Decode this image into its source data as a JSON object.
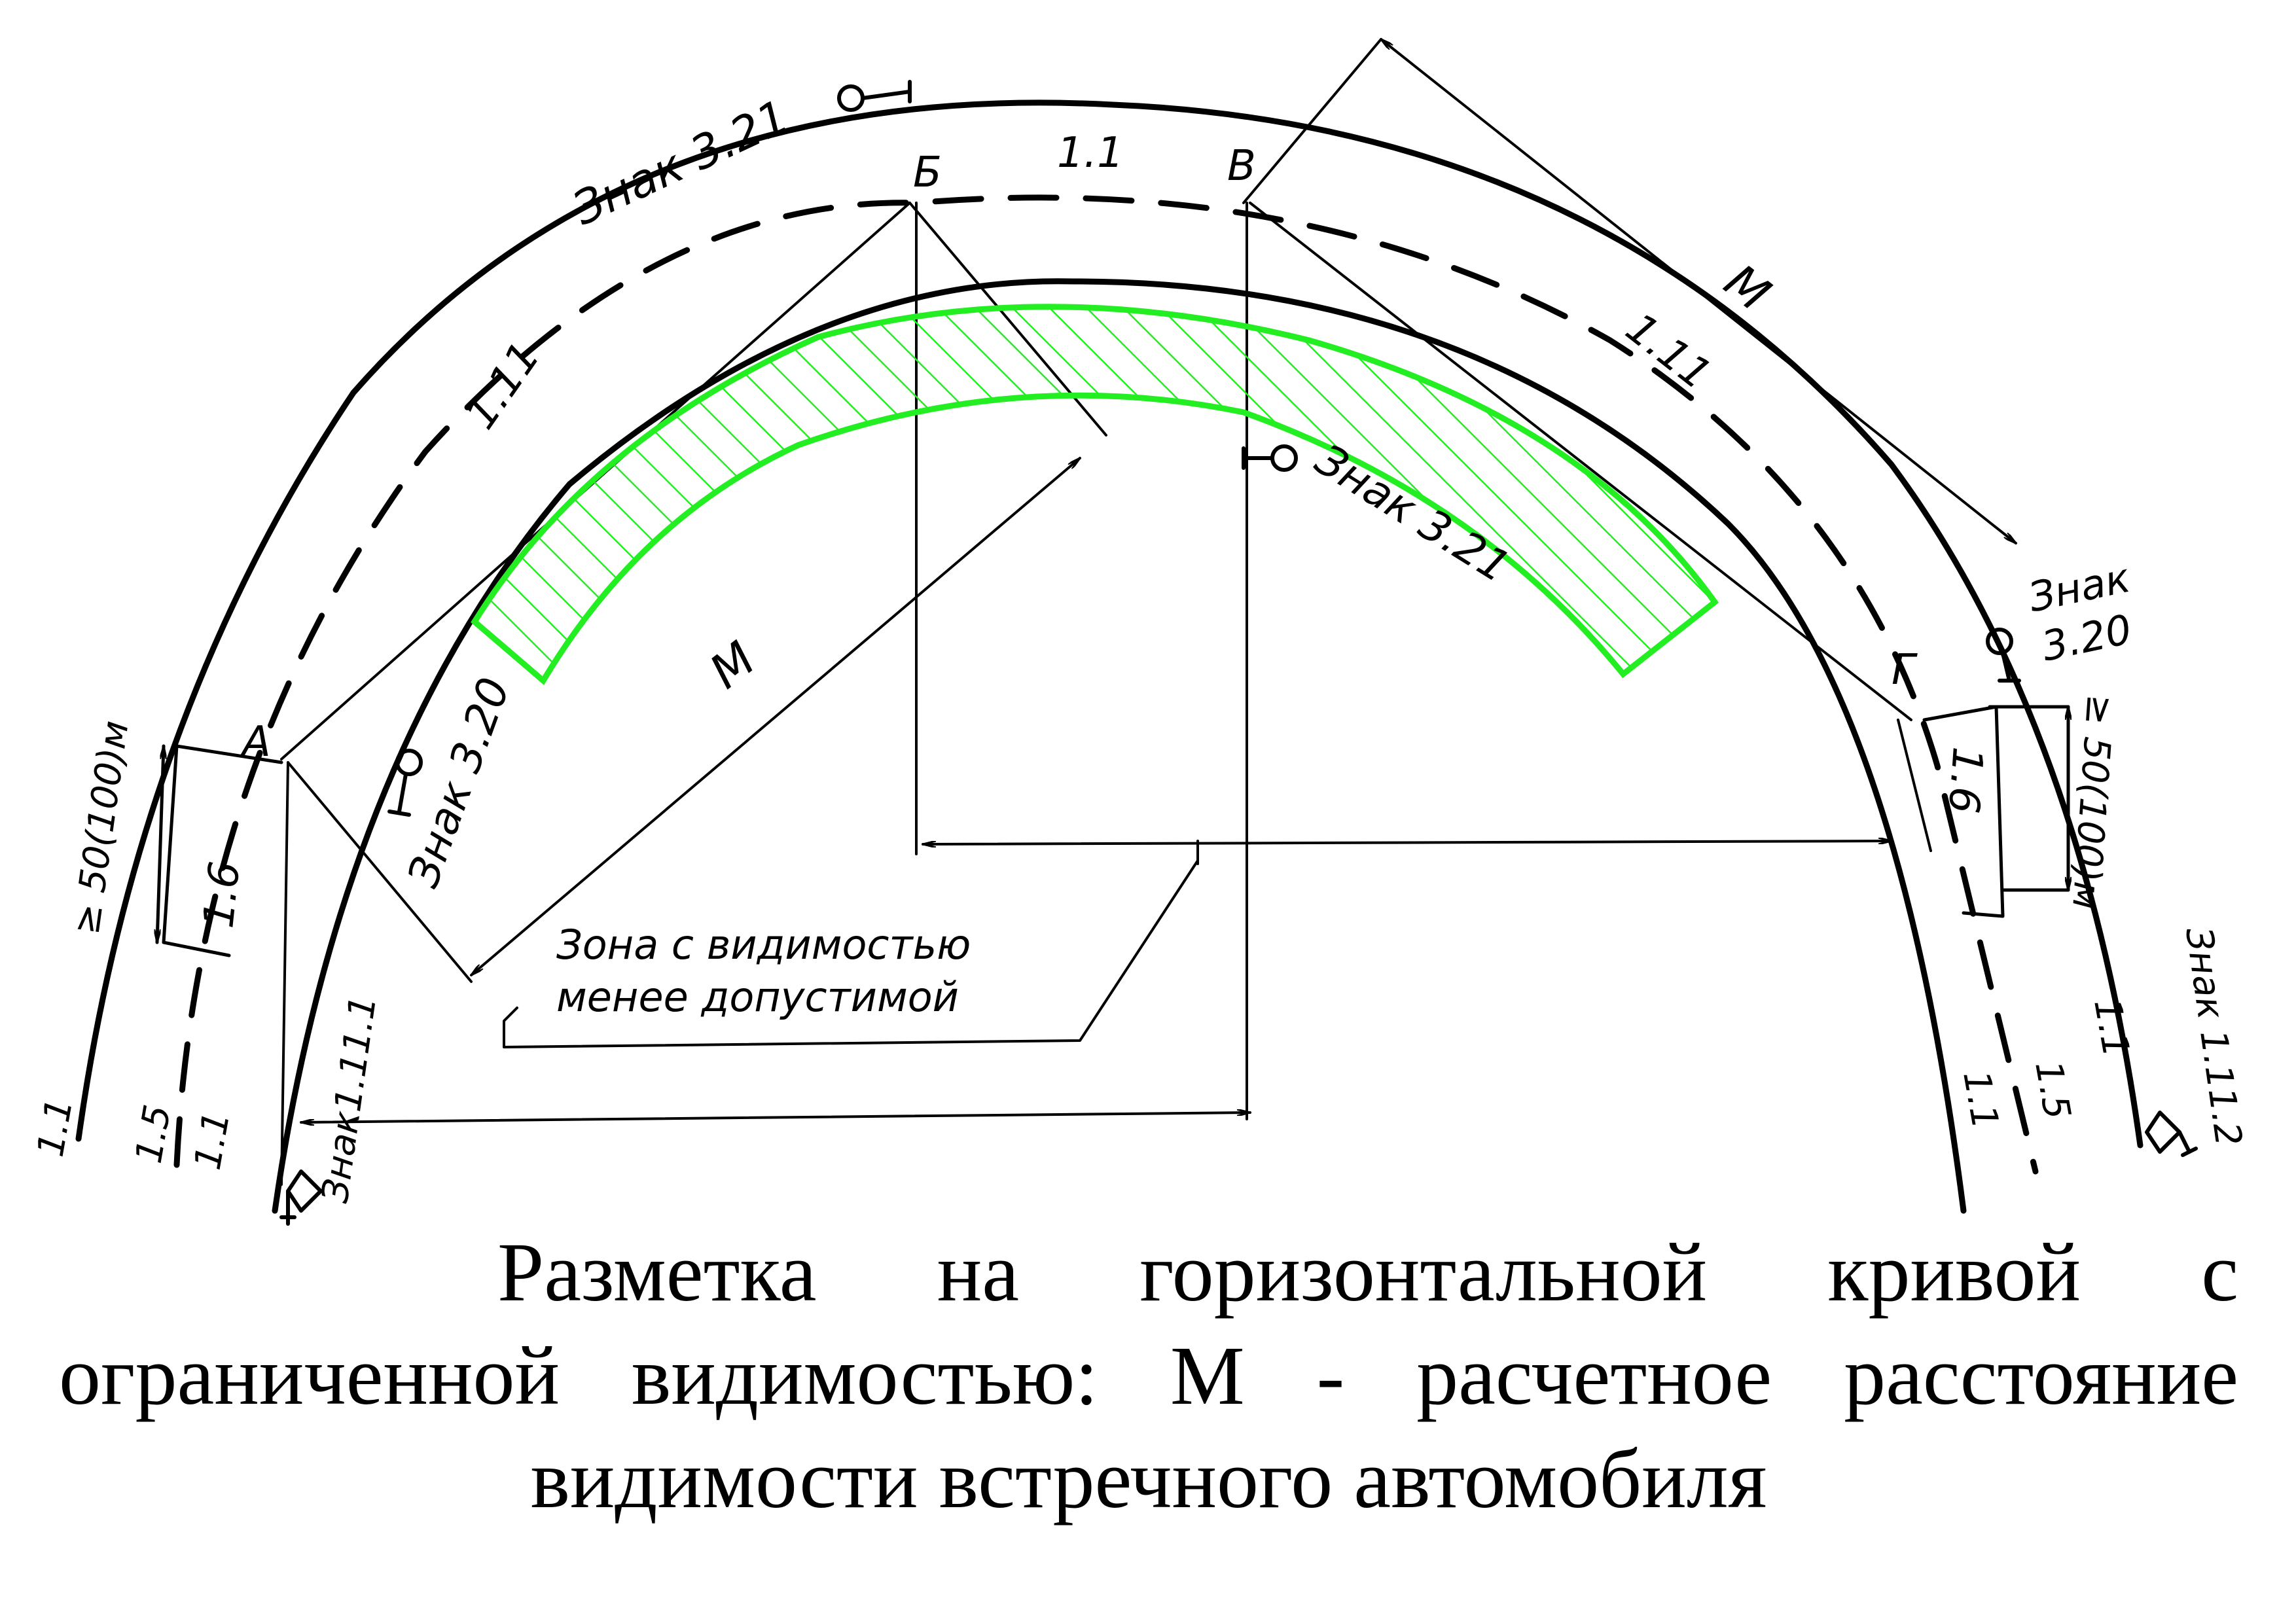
{
  "diagram": {
    "points": {
      "A": "А",
      "B": "Б",
      "V": "В",
      "G": "Г"
    },
    "markings": {
      "top_center": "1.1",
      "left_arc": "1.11",
      "right_arc": "1.11",
      "left_box": "1.6",
      "right_box": "1.6",
      "left_bottom_outer": "1.1",
      "left_bottom_mid": "1.5",
      "left_bottom_inner": "1.1",
      "right_bottom_inner": "1.1",
      "right_bottom_mid": "1.5",
      "right_bottom_outer": "1.1"
    },
    "signs": {
      "top": "Знак 3.21",
      "center": "Знак 3.21",
      "left_inner": "Знак 3.20",
      "right_top_line1": "Знак",
      "right_top_line2": "3.20",
      "left_end": "Знак1.11.1",
      "right_end": "Знак 1.11.2"
    },
    "distances": {
      "m_left": "М",
      "m_right": "М",
      "left_span": "≥ 50(100)м",
      "right_span": "≥ 50(100)м"
    },
    "zone_label_line1": "Зона с видимостью",
    "zone_label_line2": "менее допустимой",
    "colors": {
      "zone": "#22ee22",
      "ink": "#000000"
    }
  },
  "caption": {
    "line1": "Разметка на горизонтальной кривой с",
    "line2": "ограниченной видимостью: М - расчетное расстояние",
    "line3": "видимости встречного автомобиля"
  }
}
